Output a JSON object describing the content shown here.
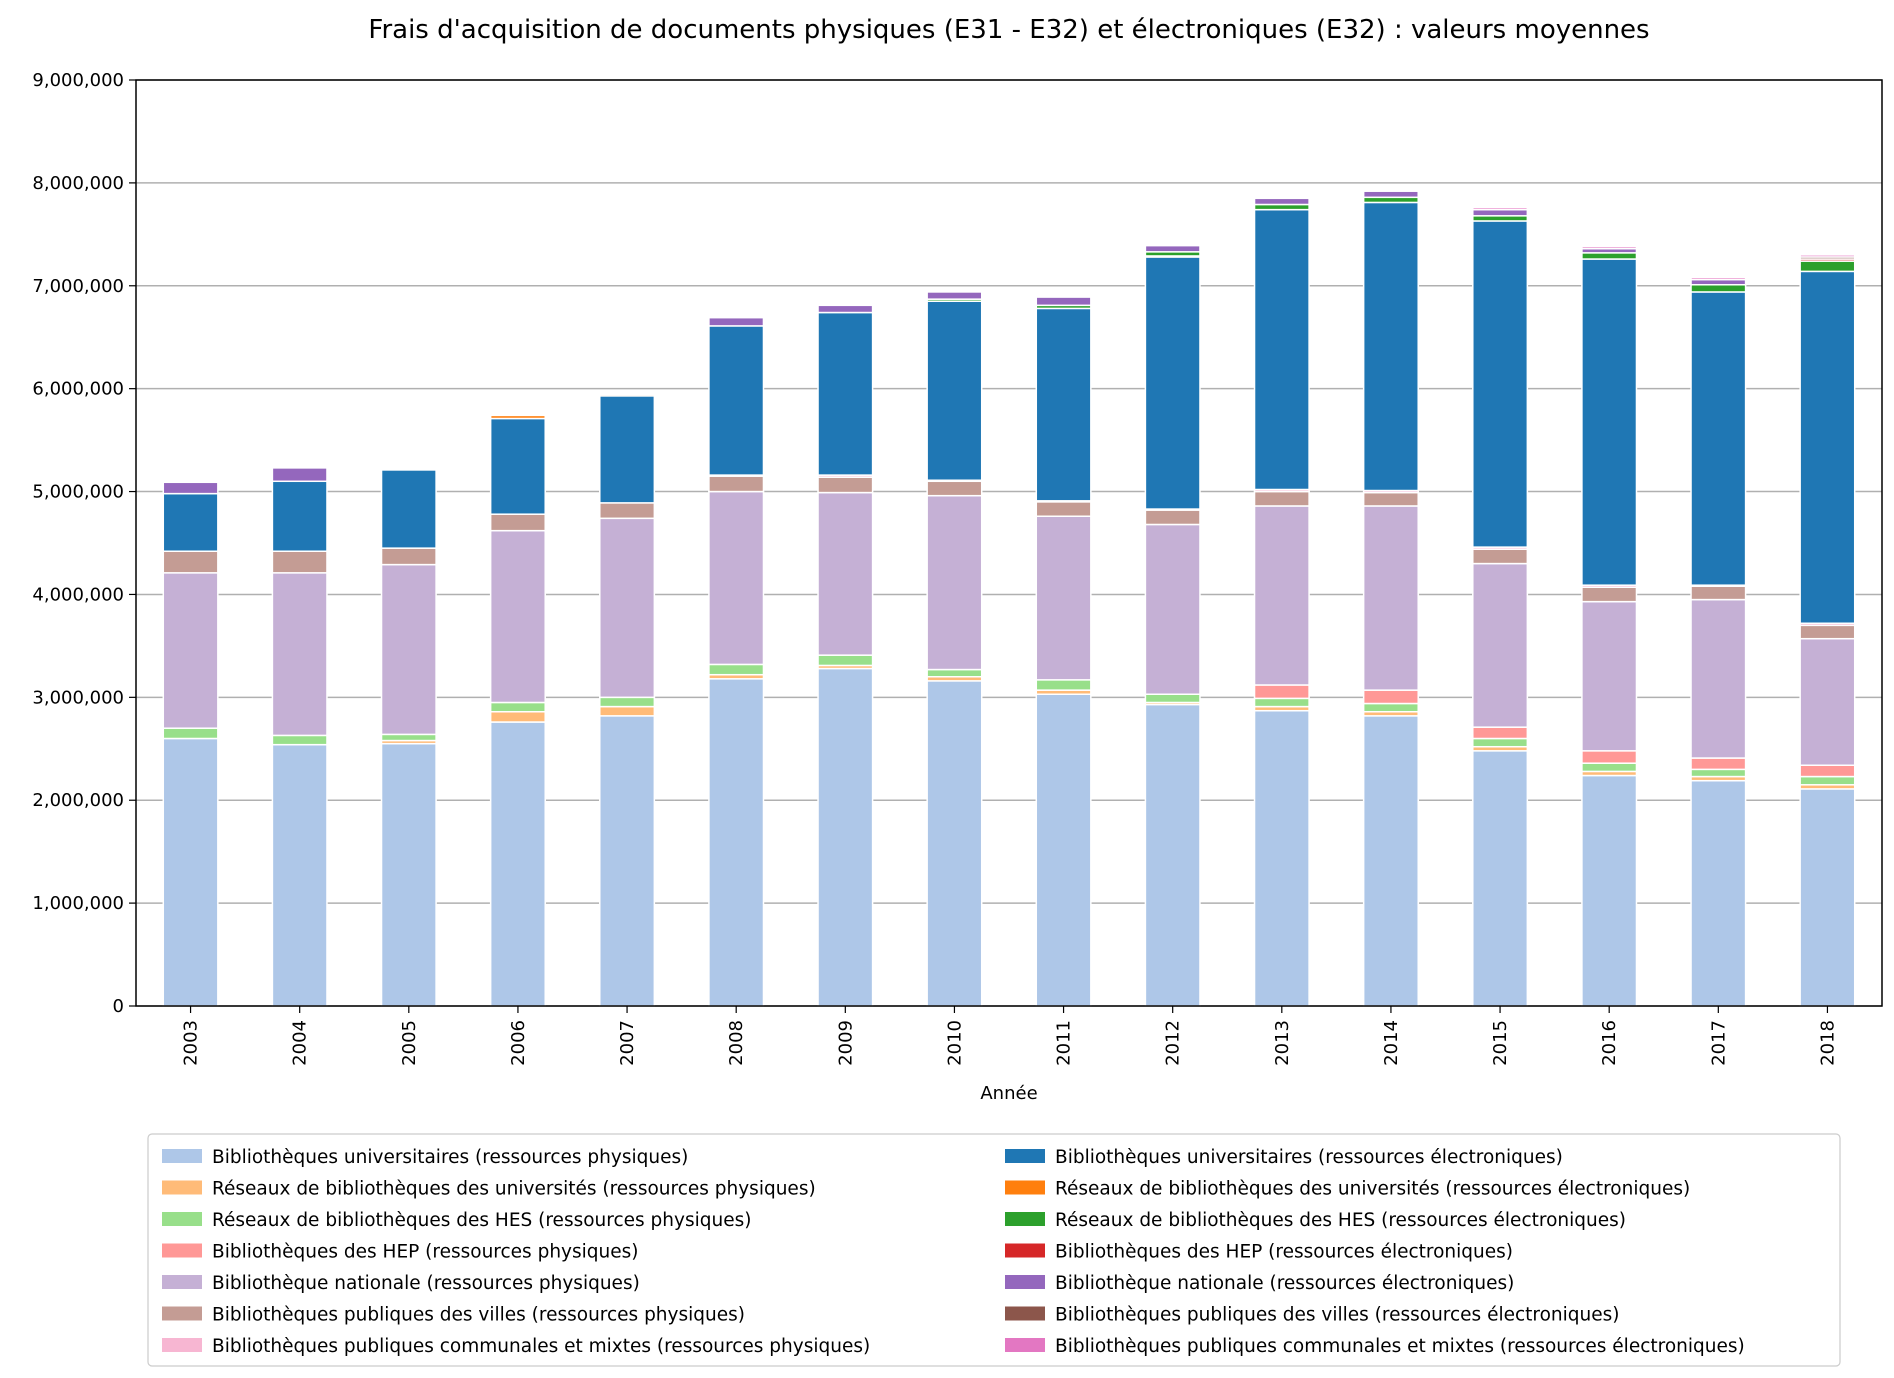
{
  "chart_data": {
    "type": "bar",
    "stacked": true,
    "title": "Frais d'acquisition de documents physiques (E31 - E32) et électroniques (E32) : valeurs moyennes",
    "xlabel": "Année",
    "ylabel": "",
    "ylim": [
      0,
      9000000
    ],
    "yticks": [
      0,
      1000000,
      2000000,
      3000000,
      4000000,
      5000000,
      6000000,
      7000000,
      8000000,
      9000000
    ],
    "ytick_labels": [
      "0",
      "1,000,000",
      "2,000,000",
      "3,000,000",
      "4,000,000",
      "5,000,000",
      "6,000,000",
      "7,000,000",
      "8,000,000",
      "9,000,000"
    ],
    "grid": "horizontal",
    "legend_position": "bottom",
    "categories": [
      "2003",
      "2004",
      "2005",
      "2006",
      "2007",
      "2008",
      "2009",
      "2010",
      "2011",
      "2012",
      "2013",
      "2014",
      "2015",
      "2016",
      "2017",
      "2018"
    ],
    "series": [
      {
        "name": "Bibliothèques universitaires (ressources physiques)",
        "color": "#aec7e8",
        "values": [
          2600000,
          2540000,
          2550000,
          2760000,
          2820000,
          3180000,
          3280000,
          3160000,
          3030000,
          2930000,
          2870000,
          2820000,
          2480000,
          2240000,
          2190000,
          2110000
        ]
      },
      {
        "name": "Bibliothèques universitaires (ressources électroniques)",
        "color": "#1f77b4",
        "values": [
          560000,
          680000,
          760000,
          930000,
          1040000,
          1450000,
          1580000,
          1740000,
          1870000,
          2450000,
          2720000,
          2800000,
          3170000,
          3170000,
          2850000,
          3420000
        ]
      },
      {
        "name": "Réseaux de bibliothèques des universités (ressources physiques)",
        "color": "#ffbb78",
        "values": [
          0,
          0,
          30000,
          100000,
          90000,
          40000,
          30000,
          40000,
          40000,
          20000,
          40000,
          40000,
          40000,
          40000,
          40000,
          40000
        ]
      },
      {
        "name": "Réseaux de bibliothèques des universités (ressources électroniques)",
        "color": "#ff7f0e",
        "values": [
          0,
          0,
          0,
          30000,
          15000,
          0,
          0,
          0,
          0,
          10000,
          0,
          0,
          0,
          0,
          0,
          0
        ]
      },
      {
        "name": "Réseaux de bibliothèques des HES (ressources physiques)",
        "color": "#98df8a",
        "values": [
          100000,
          90000,
          60000,
          90000,
          90000,
          100000,
          100000,
          70000,
          100000,
          80000,
          80000,
          80000,
          80000,
          80000,
          70000,
          80000
        ]
      },
      {
        "name": "Réseaux de bibliothèques des HES (ressources électroniques)",
        "color": "#2ca02c",
        "values": [
          0,
          0,
          0,
          0,
          0,
          0,
          0,
          20000,
          30000,
          40000,
          50000,
          50000,
          50000,
          60000,
          70000,
          100000
        ]
      },
      {
        "name": "Bibliothèques des HEP (ressources physiques)",
        "color": "#ff9896",
        "values": [
          0,
          0,
          0,
          0,
          0,
          0,
          0,
          0,
          0,
          0,
          130000,
          130000,
          110000,
          120000,
          110000,
          110000
        ]
      },
      {
        "name": "Bibliothèques des HEP (ressources électroniques)",
        "color": "#d62728",
        "values": [
          0,
          0,
          0,
          0,
          0,
          0,
          0,
          0,
          0,
          0,
          0,
          0,
          0,
          0,
          0,
          20000
        ]
      },
      {
        "name": "Bibliothèque nationale (ressources physiques)",
        "color": "#c5b0d5",
        "values": [
          1510000,
          1580000,
          1650000,
          1670000,
          1740000,
          1680000,
          1580000,
          1690000,
          1590000,
          1650000,
          1740000,
          1790000,
          1590000,
          1450000,
          1540000,
          1230000
        ]
      },
      {
        "name": "Bibliothèque nationale (ressources électroniques)",
        "color": "#9467bd",
        "values": [
          110000,
          130000,
          0,
          0,
          0,
          80000,
          70000,
          70000,
          80000,
          60000,
          60000,
          60000,
          60000,
          40000,
          50000,
          0
        ]
      },
      {
        "name": "Bibliothèques publiques des villes (ressources physiques)",
        "color": "#c49c94",
        "values": [
          210000,
          210000,
          160000,
          160000,
          150000,
          150000,
          150000,
          140000,
          140000,
          140000,
          140000,
          130000,
          140000,
          140000,
          130000,
          130000
        ]
      },
      {
        "name": "Bibliothèques publiques des villes (ressources électroniques)",
        "color": "#8c564b",
        "values": [
          0,
          0,
          0,
          0,
          0,
          0,
          0,
          0,
          0,
          0,
          0,
          0,
          0,
          0,
          0,
          20000
        ]
      },
      {
        "name": "Bibliothèques publiques communales et mixtes (ressources physiques)",
        "color": "#f7b6d2",
        "values": [
          0,
          0,
          0,
          0,
          0,
          10000,
          20000,
          10000,
          10000,
          10000,
          20000,
          20000,
          20000,
          20000,
          10000,
          20000
        ]
      },
      {
        "name": "Bibliothèques publiques communales et mixtes (ressources électroniques)",
        "color": "#e377c2",
        "values": [
          0,
          0,
          0,
          0,
          0,
          0,
          0,
          0,
          0,
          0,
          0,
          10000,
          20000,
          20000,
          20000,
          20000
        ]
      }
    ],
    "stack_order": [
      "Bibliothèques universitaires (ressources physiques)",
      "Réseaux de bibliothèques des universités (ressources physiques)",
      "Réseaux de bibliothèques des HES (ressources physiques)",
      "Bibliothèques des HEP (ressources physiques)",
      "Bibliothèque nationale (ressources physiques)",
      "Bibliothèques publiques des villes (ressources physiques)",
      "Bibliothèques publiques communales et mixtes (ressources physiques)",
      "Bibliothèques universitaires (ressources électroniques)",
      "Réseaux de bibliothèques des universités (ressources électroniques)",
      "Réseaux de bibliothèques des HES (ressources électroniques)",
      "Bibliothèques des HEP (ressources électroniques)",
      "Bibliothèque nationale (ressources électroniques)",
      "Bibliothèques publiques des villes (ressources électroniques)",
      "Bibliothèques publiques communales et mixtes (ressources électroniques)"
    ],
    "legend_columns": [
      [
        "Bibliothèques universitaires (ressources physiques)",
        "Réseaux de bibliothèques des universités (ressources physiques)",
        "Réseaux de bibliothèques des HES (ressources physiques)",
        "Bibliothèques des HEP (ressources physiques)",
        "Bibliothèque nationale (ressources physiques)",
        "Bibliothèques publiques des villes (ressources physiques)",
        "Bibliothèques publiques communales et mixtes (ressources physiques)"
      ],
      [
        "Bibliothèques universitaires (ressources électroniques)",
        "Réseaux de bibliothèques des universités (ressources électroniques)",
        "Réseaux de bibliothèques des HES (ressources électroniques)",
        "Bibliothèques des HEP (ressources électroniques)",
        "Bibliothèque nationale (ressources électroniques)",
        "Bibliothèques publiques des villes (ressources électroniques)",
        "Bibliothèques publiques communales et mixtes (ressources électroniques)"
      ]
    ]
  }
}
